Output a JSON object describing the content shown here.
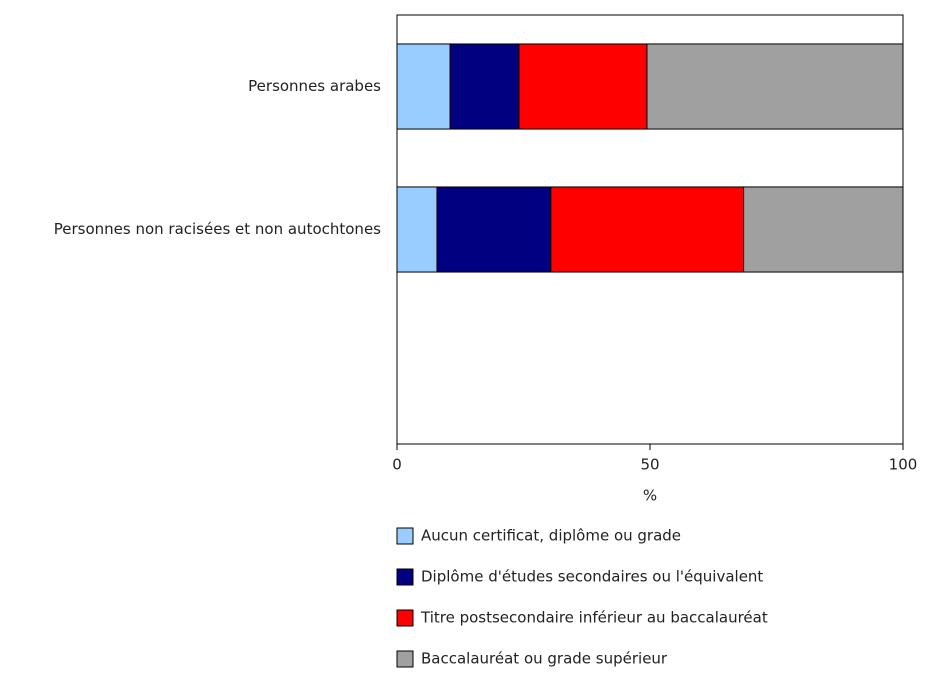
{
  "chart_data": {
    "type": "stacked-barh",
    "categories": [
      "Personnes arabes",
      "Personnes non racisées et non autochtones",
      null
    ],
    "series": [
      {
        "name": "Aucun certificat, diplôme ou grade",
        "color": "#99ccff",
        "values": [
          10.5,
          7.9,
          null
        ]
      },
      {
        "name": "Diplôme d'études secondaires ou l'équivalent",
        "color": "#000080",
        "values": [
          13.6,
          22.5,
          null
        ]
      },
      {
        "name": "Titre postsecondaire inférieur au baccalauréat",
        "color": "#ff0000",
        "values": [
          25.3,
          38.1,
          null
        ]
      },
      {
        "name": "Baccalauréat ou grade supérieur",
        "color": "#a0a0a0",
        "values": [
          50.6,
          31.5,
          null
        ]
      }
    ],
    "xlabel": "%",
    "xlim": [
      0,
      100
    ],
    "xticks": [
      0,
      50,
      100
    ],
    "grid": false,
    "legend": "bottom"
  }
}
